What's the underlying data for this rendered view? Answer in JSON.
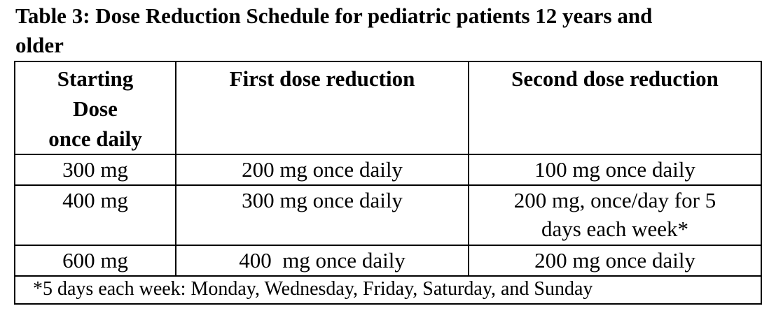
{
  "caption": {
    "line1": "Table 3: Dose Reduction Schedule for pediatric patients 12 years and",
    "line2": "older"
  },
  "table": {
    "headers": {
      "starting_dose": [
        "Starting",
        "Dose",
        "once daily"
      ],
      "first_reduction": "First dose reduction",
      "second_reduction": "Second dose reduction"
    },
    "rows": [
      {
        "starting": "300 mg",
        "first": "200 mg once daily",
        "second": [
          "100 mg once daily"
        ]
      },
      {
        "starting": "400 mg",
        "first": "300 mg once daily",
        "second": [
          "200 mg, once/day for 5",
          "days each week*"
        ]
      },
      {
        "starting": "600 mg",
        "first": "400  mg once daily",
        "second": [
          "200 mg once daily"
        ]
      }
    ],
    "footnote": "*5 days each week: Monday, Wednesday, Friday, Saturday, and Sunday"
  }
}
